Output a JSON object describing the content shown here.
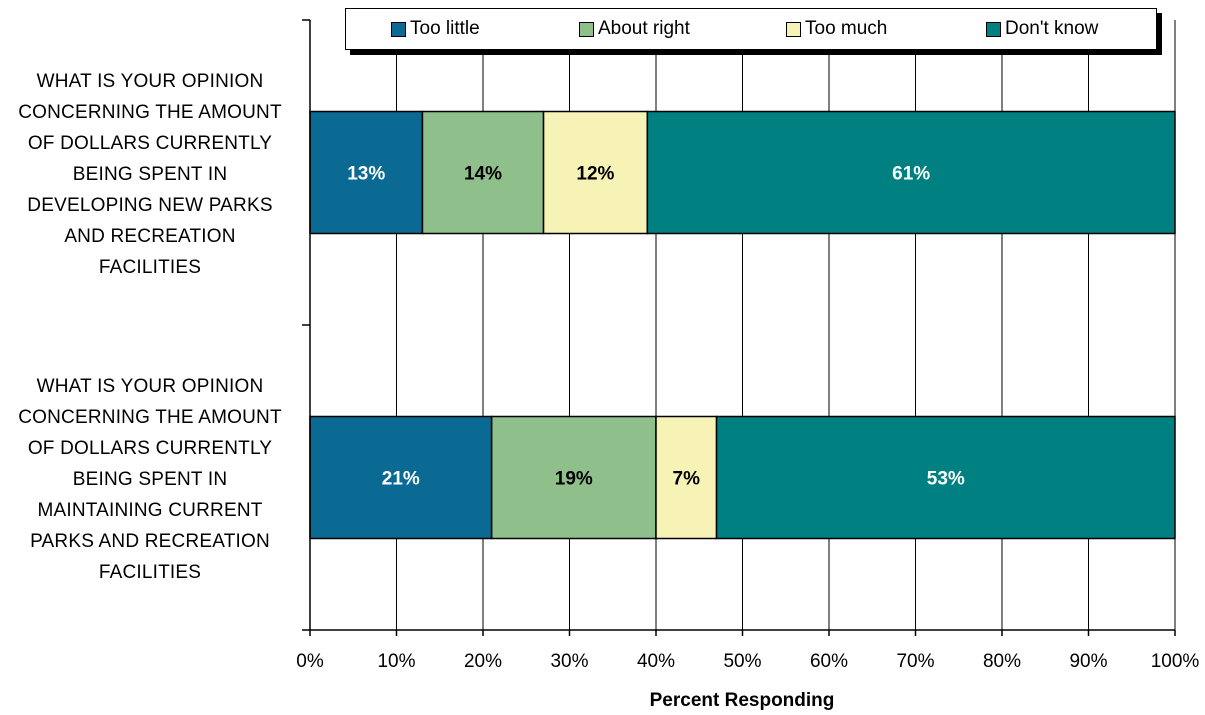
{
  "chart_data": {
    "type": "bar",
    "orientation": "horizontal",
    "stacked": true,
    "categories": [
      "WHAT IS YOUR OPINION CONCERNING THE AMOUNT OF DOLLARS CURRENTLY BEING SPENT IN DEVELOPING NEW PARKS AND RECREATION FACILITIES",
      "WHAT IS YOUR OPINION CONCERNING THE AMOUNT OF DOLLARS CURRENTLY BEING SPENT IN MAINTAINING CURRENT PARKS AND RECREATION FACILITIES"
    ],
    "category_lines": [
      [
        "WHAT IS YOUR OPINION",
        "CONCERNING THE AMOUNT",
        "OF DOLLARS CURRENTLY",
        "BEING SPENT IN",
        "DEVELOPING NEW PARKS",
        "AND RECREATION",
        "FACILITIES"
      ],
      [
        "WHAT IS YOUR OPINION",
        "CONCERNING THE AMOUNT",
        "OF DOLLARS CURRENTLY",
        "BEING SPENT IN",
        "MAINTAINING CURRENT",
        "PARKS AND RECREATION",
        "FACILITIES"
      ]
    ],
    "series": [
      {
        "name": "Too little",
        "values": [
          13,
          21
        ],
        "color": "#0b6a93",
        "label_color": "#ffffff"
      },
      {
        "name": "About right",
        "values": [
          14,
          19
        ],
        "color": "#8fbf8a",
        "label_color": "#000000"
      },
      {
        "name": "Too much",
        "values": [
          12,
          7
        ],
        "color": "#f7f2b5",
        "label_color": "#000000"
      },
      {
        "name": "Don't know",
        "values": [
          61,
          53
        ],
        "color": "#008080",
        "label_color": "#ffffff"
      }
    ],
    "data_label_suffix": "%",
    "xlabel": "Percent Responding",
    "xlim": [
      0,
      100
    ],
    "x_ticks": [
      "0%",
      "10%",
      "20%",
      "30%",
      "40%",
      "50%",
      "60%",
      "70%",
      "80%",
      "90%",
      "100%"
    ],
    "grid": true,
    "legend_position": "top"
  }
}
